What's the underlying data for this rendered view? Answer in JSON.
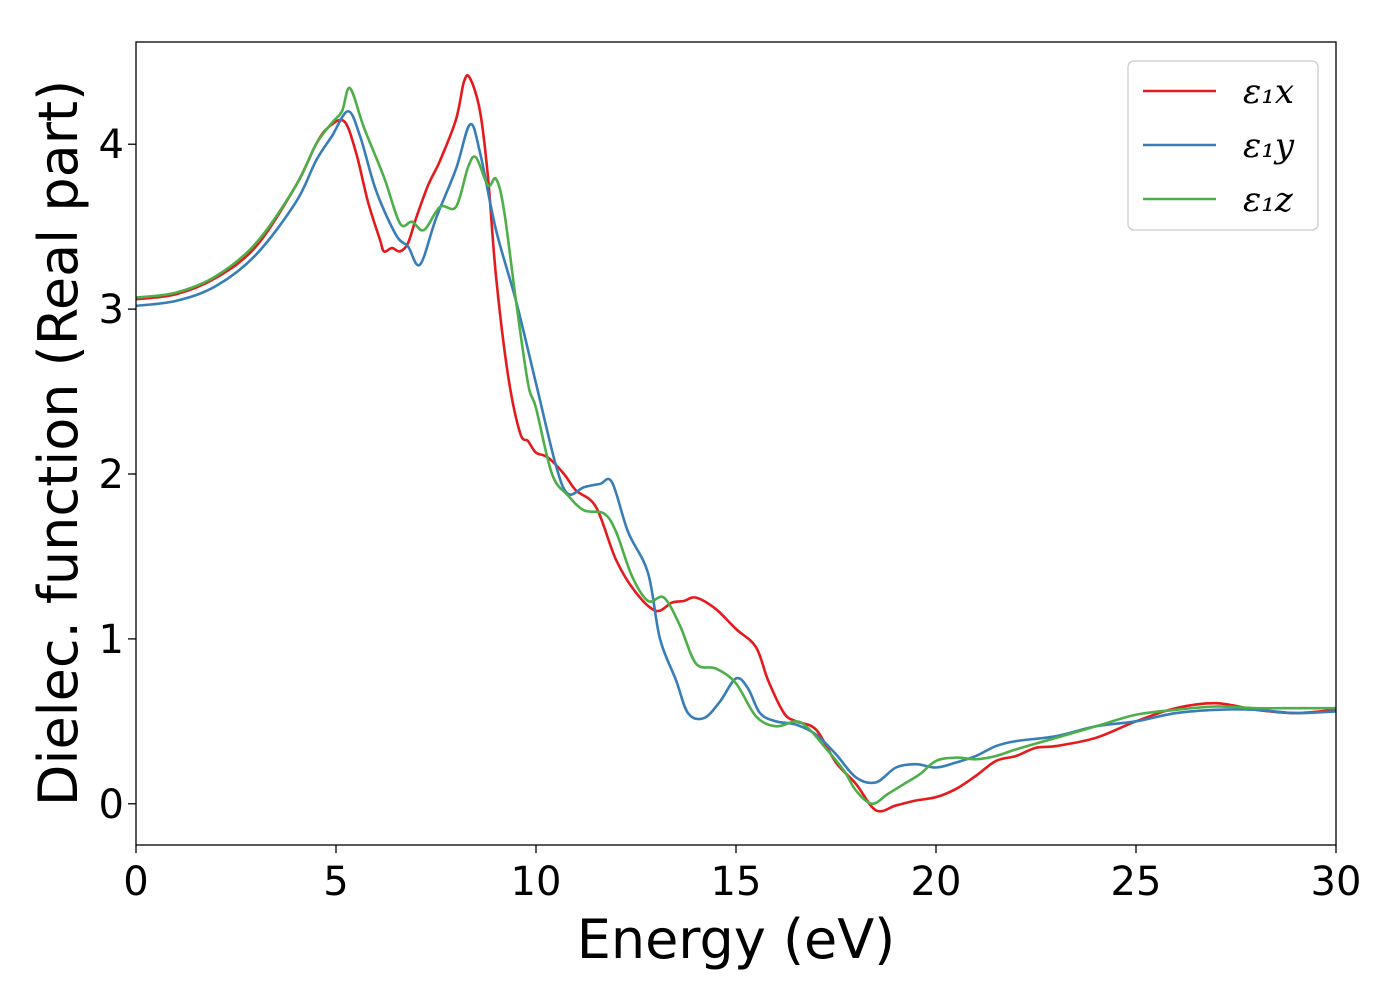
{
  "chart_data": {
    "type": "line",
    "title": "",
    "xlabel": "Energy (eV)",
    "ylabel": "Dielec. function (Real part)",
    "xlim": [
      0,
      30
    ],
    "ylim": [
      -0.25,
      4.62
    ],
    "xticks": [
      0,
      5,
      10,
      15,
      20,
      25,
      30
    ],
    "yticks": [
      0,
      1,
      2,
      3,
      4
    ],
    "grid": false,
    "legend_position": "top-right",
    "series": [
      {
        "name": "ε₁x",
        "color": "#e41a1c",
        "points": [
          [
            0,
            3.06
          ],
          [
            1,
            3.09
          ],
          [
            2,
            3.19
          ],
          [
            3,
            3.38
          ],
          [
            4,
            3.75
          ],
          [
            4.5,
            4.0
          ],
          [
            4.8,
            4.1
          ],
          [
            5.2,
            4.14
          ],
          [
            5.5,
            3.95
          ],
          [
            5.8,
            3.65
          ],
          [
            6.1,
            3.42
          ],
          [
            6.2,
            3.35
          ],
          [
            6.4,
            3.37
          ],
          [
            6.6,
            3.35
          ],
          [
            6.8,
            3.4
          ],
          [
            7.0,
            3.55
          ],
          [
            7.3,
            3.75
          ],
          [
            7.6,
            3.9
          ],
          [
            8.0,
            4.15
          ],
          [
            8.2,
            4.38
          ],
          [
            8.35,
            4.4
          ],
          [
            8.6,
            4.2
          ],
          [
            8.8,
            3.8
          ],
          [
            9.0,
            3.2
          ],
          [
            9.3,
            2.6
          ],
          [
            9.6,
            2.25
          ],
          [
            9.8,
            2.2
          ],
          [
            10.0,
            2.13
          ],
          [
            10.3,
            2.1
          ],
          [
            10.7,
            2.0
          ],
          [
            11.0,
            1.9
          ],
          [
            11.5,
            1.8
          ],
          [
            12.0,
            1.48
          ],
          [
            12.5,
            1.28
          ],
          [
            13.0,
            1.17
          ],
          [
            13.4,
            1.22
          ],
          [
            13.7,
            1.23
          ],
          [
            14.0,
            1.25
          ],
          [
            14.5,
            1.18
          ],
          [
            15.0,
            1.06
          ],
          [
            15.5,
            0.95
          ],
          [
            15.8,
            0.75
          ],
          [
            16.2,
            0.55
          ],
          [
            16.5,
            0.5
          ],
          [
            17.0,
            0.45
          ],
          [
            17.5,
            0.25
          ],
          [
            18.0,
            0.12
          ],
          [
            18.5,
            -0.04
          ],
          [
            19.0,
            -0.01
          ],
          [
            19.5,
            0.02
          ],
          [
            20.0,
            0.04
          ],
          [
            20.5,
            0.09
          ],
          [
            21.0,
            0.17
          ],
          [
            21.5,
            0.26
          ],
          [
            22.0,
            0.29
          ],
          [
            22.5,
            0.34
          ],
          [
            23.0,
            0.35
          ],
          [
            24.0,
            0.4
          ],
          [
            25.0,
            0.5
          ],
          [
            26.0,
            0.58
          ],
          [
            27.0,
            0.61
          ],
          [
            28.0,
            0.57
          ],
          [
            29.0,
            0.55
          ],
          [
            30.0,
            0.57
          ]
        ]
      },
      {
        "name": "ε₁y",
        "color": "#377eb8",
        "points": [
          [
            0,
            3.02
          ],
          [
            1,
            3.05
          ],
          [
            2,
            3.14
          ],
          [
            3,
            3.33
          ],
          [
            4,
            3.65
          ],
          [
            4.5,
            3.9
          ],
          [
            4.9,
            4.05
          ],
          [
            5.3,
            4.2
          ],
          [
            5.6,
            4.05
          ],
          [
            6.0,
            3.72
          ],
          [
            6.5,
            3.45
          ],
          [
            6.8,
            3.38
          ],
          [
            7.1,
            3.27
          ],
          [
            7.5,
            3.55
          ],
          [
            8.0,
            3.85
          ],
          [
            8.35,
            4.12
          ],
          [
            8.6,
            3.95
          ],
          [
            9.0,
            3.48
          ],
          [
            9.5,
            3.05
          ],
          [
            10.0,
            2.55
          ],
          [
            10.5,
            2.05
          ],
          [
            10.8,
            1.88
          ],
          [
            11.2,
            1.92
          ],
          [
            11.6,
            1.94
          ],
          [
            11.9,
            1.95
          ],
          [
            12.3,
            1.65
          ],
          [
            12.8,
            1.4
          ],
          [
            13.1,
            1.0
          ],
          [
            13.5,
            0.75
          ],
          [
            13.8,
            0.55
          ],
          [
            14.2,
            0.52
          ],
          [
            14.6,
            0.62
          ],
          [
            15.0,
            0.76
          ],
          [
            15.3,
            0.7
          ],
          [
            15.6,
            0.55
          ],
          [
            16.0,
            0.5
          ],
          [
            16.5,
            0.48
          ],
          [
            17.0,
            0.42
          ],
          [
            17.5,
            0.3
          ],
          [
            18.0,
            0.16
          ],
          [
            18.5,
            0.13
          ],
          [
            19.0,
            0.22
          ],
          [
            19.5,
            0.24
          ],
          [
            20.0,
            0.22
          ],
          [
            20.5,
            0.25
          ],
          [
            21.0,
            0.29
          ],
          [
            21.5,
            0.35
          ],
          [
            22.0,
            0.38
          ],
          [
            23.0,
            0.41
          ],
          [
            24.0,
            0.47
          ],
          [
            25.0,
            0.5
          ],
          [
            26.0,
            0.55
          ],
          [
            27.0,
            0.57
          ],
          [
            28.0,
            0.57
          ],
          [
            29.0,
            0.55
          ],
          [
            30.0,
            0.56
          ]
        ]
      },
      {
        "name": "ε₁z",
        "color": "#4daf4a",
        "points": [
          [
            0,
            3.07
          ],
          [
            1,
            3.1
          ],
          [
            2,
            3.2
          ],
          [
            3,
            3.4
          ],
          [
            4,
            3.75
          ],
          [
            4.5,
            4.0
          ],
          [
            4.9,
            4.13
          ],
          [
            5.15,
            4.2
          ],
          [
            5.35,
            4.34
          ],
          [
            5.7,
            4.1
          ],
          [
            6.2,
            3.8
          ],
          [
            6.6,
            3.52
          ],
          [
            6.9,
            3.53
          ],
          [
            7.2,
            3.48
          ],
          [
            7.6,
            3.62
          ],
          [
            8.0,
            3.62
          ],
          [
            8.3,
            3.86
          ],
          [
            8.5,
            3.92
          ],
          [
            8.8,
            3.75
          ],
          [
            9.0,
            3.79
          ],
          [
            9.2,
            3.6
          ],
          [
            9.5,
            3.05
          ],
          [
            9.8,
            2.55
          ],
          [
            10.0,
            2.4
          ],
          [
            10.4,
            2.0
          ],
          [
            10.8,
            1.87
          ],
          [
            11.2,
            1.78
          ],
          [
            11.7,
            1.76
          ],
          [
            12.0,
            1.65
          ],
          [
            12.4,
            1.38
          ],
          [
            12.8,
            1.23
          ],
          [
            13.2,
            1.25
          ],
          [
            13.6,
            1.08
          ],
          [
            14.0,
            0.85
          ],
          [
            14.5,
            0.82
          ],
          [
            15.0,
            0.73
          ],
          [
            15.5,
            0.53
          ],
          [
            16.0,
            0.47
          ],
          [
            16.5,
            0.5
          ],
          [
            16.8,
            0.46
          ],
          [
            17.2,
            0.35
          ],
          [
            17.7,
            0.2
          ],
          [
            18.0,
            0.08
          ],
          [
            18.4,
            0.0
          ],
          [
            18.8,
            0.06
          ],
          [
            19.2,
            0.12
          ],
          [
            19.6,
            0.18
          ],
          [
            20.0,
            0.26
          ],
          [
            20.5,
            0.28
          ],
          [
            21.0,
            0.27
          ],
          [
            21.5,
            0.29
          ],
          [
            22.0,
            0.33
          ],
          [
            23.0,
            0.4
          ],
          [
            24.0,
            0.47
          ],
          [
            25.0,
            0.54
          ],
          [
            26.0,
            0.57
          ],
          [
            27.0,
            0.59
          ],
          [
            28.0,
            0.58
          ],
          [
            29.0,
            0.58
          ],
          [
            30.0,
            0.58
          ]
        ]
      }
    ]
  }
}
